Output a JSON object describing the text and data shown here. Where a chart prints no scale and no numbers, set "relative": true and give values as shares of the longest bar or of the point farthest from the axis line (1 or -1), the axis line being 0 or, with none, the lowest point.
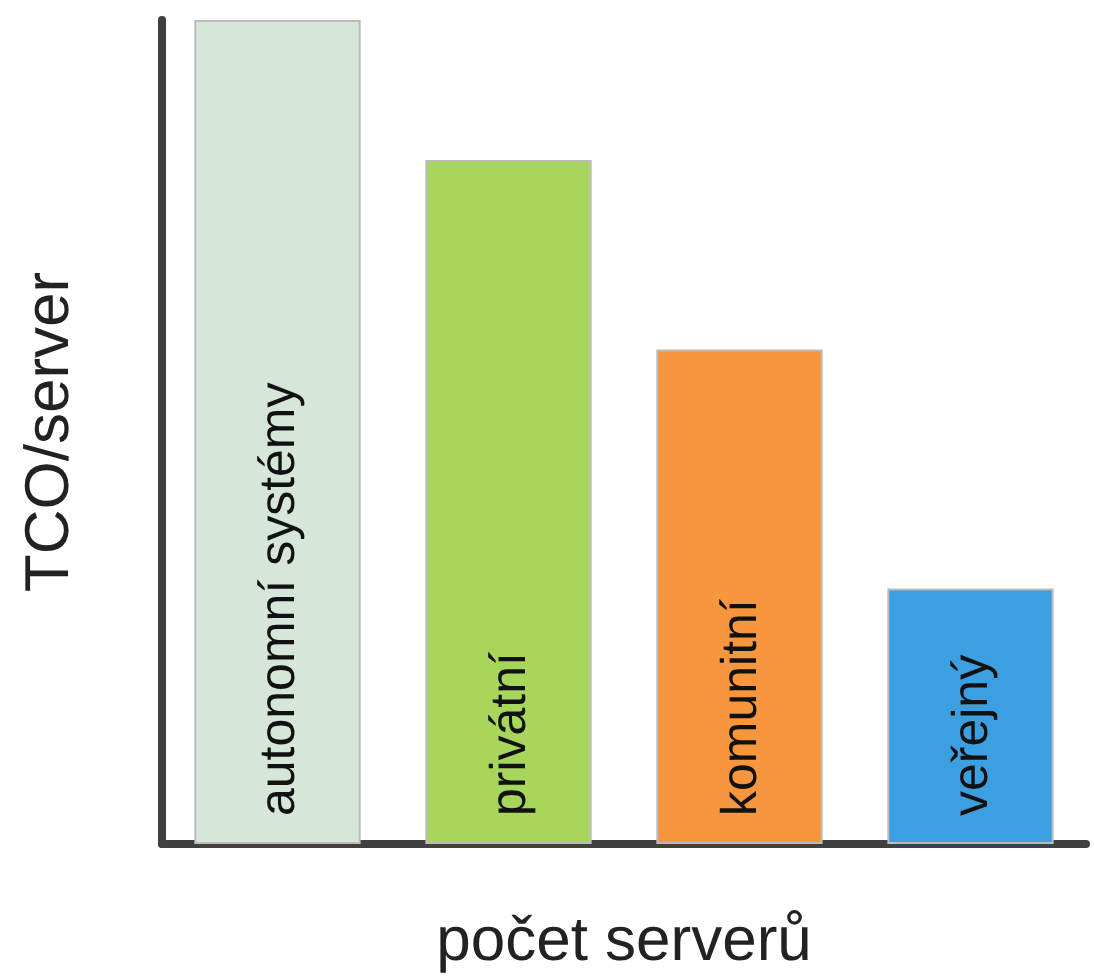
{
  "chart_data": {
    "type": "bar",
    "relative": true,
    "xlabel": "počet serverů",
    "ylabel": "TCO/server",
    "categories": [
      "autonomní systémy",
      "privátní",
      "komunitní",
      "veřejný"
    ],
    "values": [
      1,
      0.83,
      0.6,
      0.31
    ],
    "colors": [
      "#d6e7da",
      "#a8d65c",
      "#f7963c",
      "#3b9fe0"
    ]
  }
}
